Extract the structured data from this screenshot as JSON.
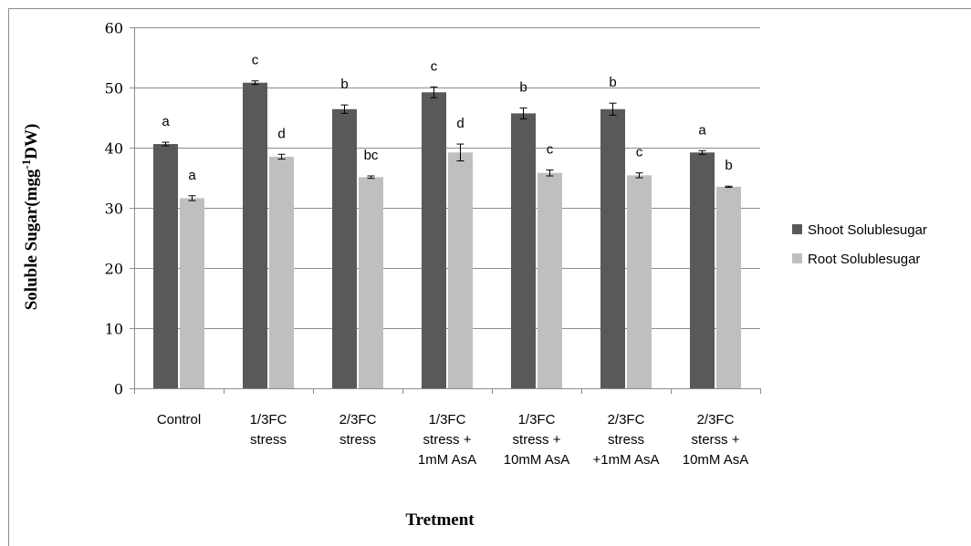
{
  "chart_data": {
    "type": "bar",
    "title": "",
    "xlabel": "Tretment",
    "ylabel": "Soluble Sugar(mgg-1DW)",
    "ylabel_parts": {
      "base": "Soluble Sugar(mgg",
      "sup": "-1",
      "tail": "DW)"
    },
    "ylim": [
      0,
      60
    ],
    "yticks": [
      0,
      10,
      20,
      30,
      40,
      50,
      60
    ],
    "grid": true,
    "legend_position": "right",
    "categories": [
      [
        "Control"
      ],
      [
        "1/3FC",
        "stress"
      ],
      [
        "2/3FC",
        "stress"
      ],
      [
        "1/3FC",
        "stress +",
        "1mM AsA"
      ],
      [
        "1/3FC",
        "stress +",
        "10mM AsA"
      ],
      [
        "2/3FC",
        "stress",
        "+1mM AsA"
      ],
      [
        "2/3FC",
        "sterss +",
        "10mM AsA"
      ]
    ],
    "series": [
      {
        "name": "Shoot Solublesugar",
        "color": "#595959",
        "values": [
          40.6,
          50.8,
          46.4,
          49.2,
          45.7,
          46.4,
          39.2
        ],
        "errors": [
          0.3,
          0.3,
          0.7,
          0.9,
          0.9,
          1.0,
          0.3
        ],
        "labels": [
          "a",
          "c",
          "b",
          "c",
          "b",
          "b",
          "a"
        ]
      },
      {
        "name": "Root Solublesugar",
        "color": "#bfbfbf",
        "values": [
          31.6,
          38.5,
          35.1,
          39.2,
          35.8,
          35.4,
          33.5
        ],
        "errors": [
          0.4,
          0.4,
          0.2,
          1.4,
          0.5,
          0.4,
          0.1
        ],
        "labels": [
          "a",
          "d",
          "bc",
          "d",
          "c",
          "c",
          "b"
        ]
      }
    ]
  }
}
